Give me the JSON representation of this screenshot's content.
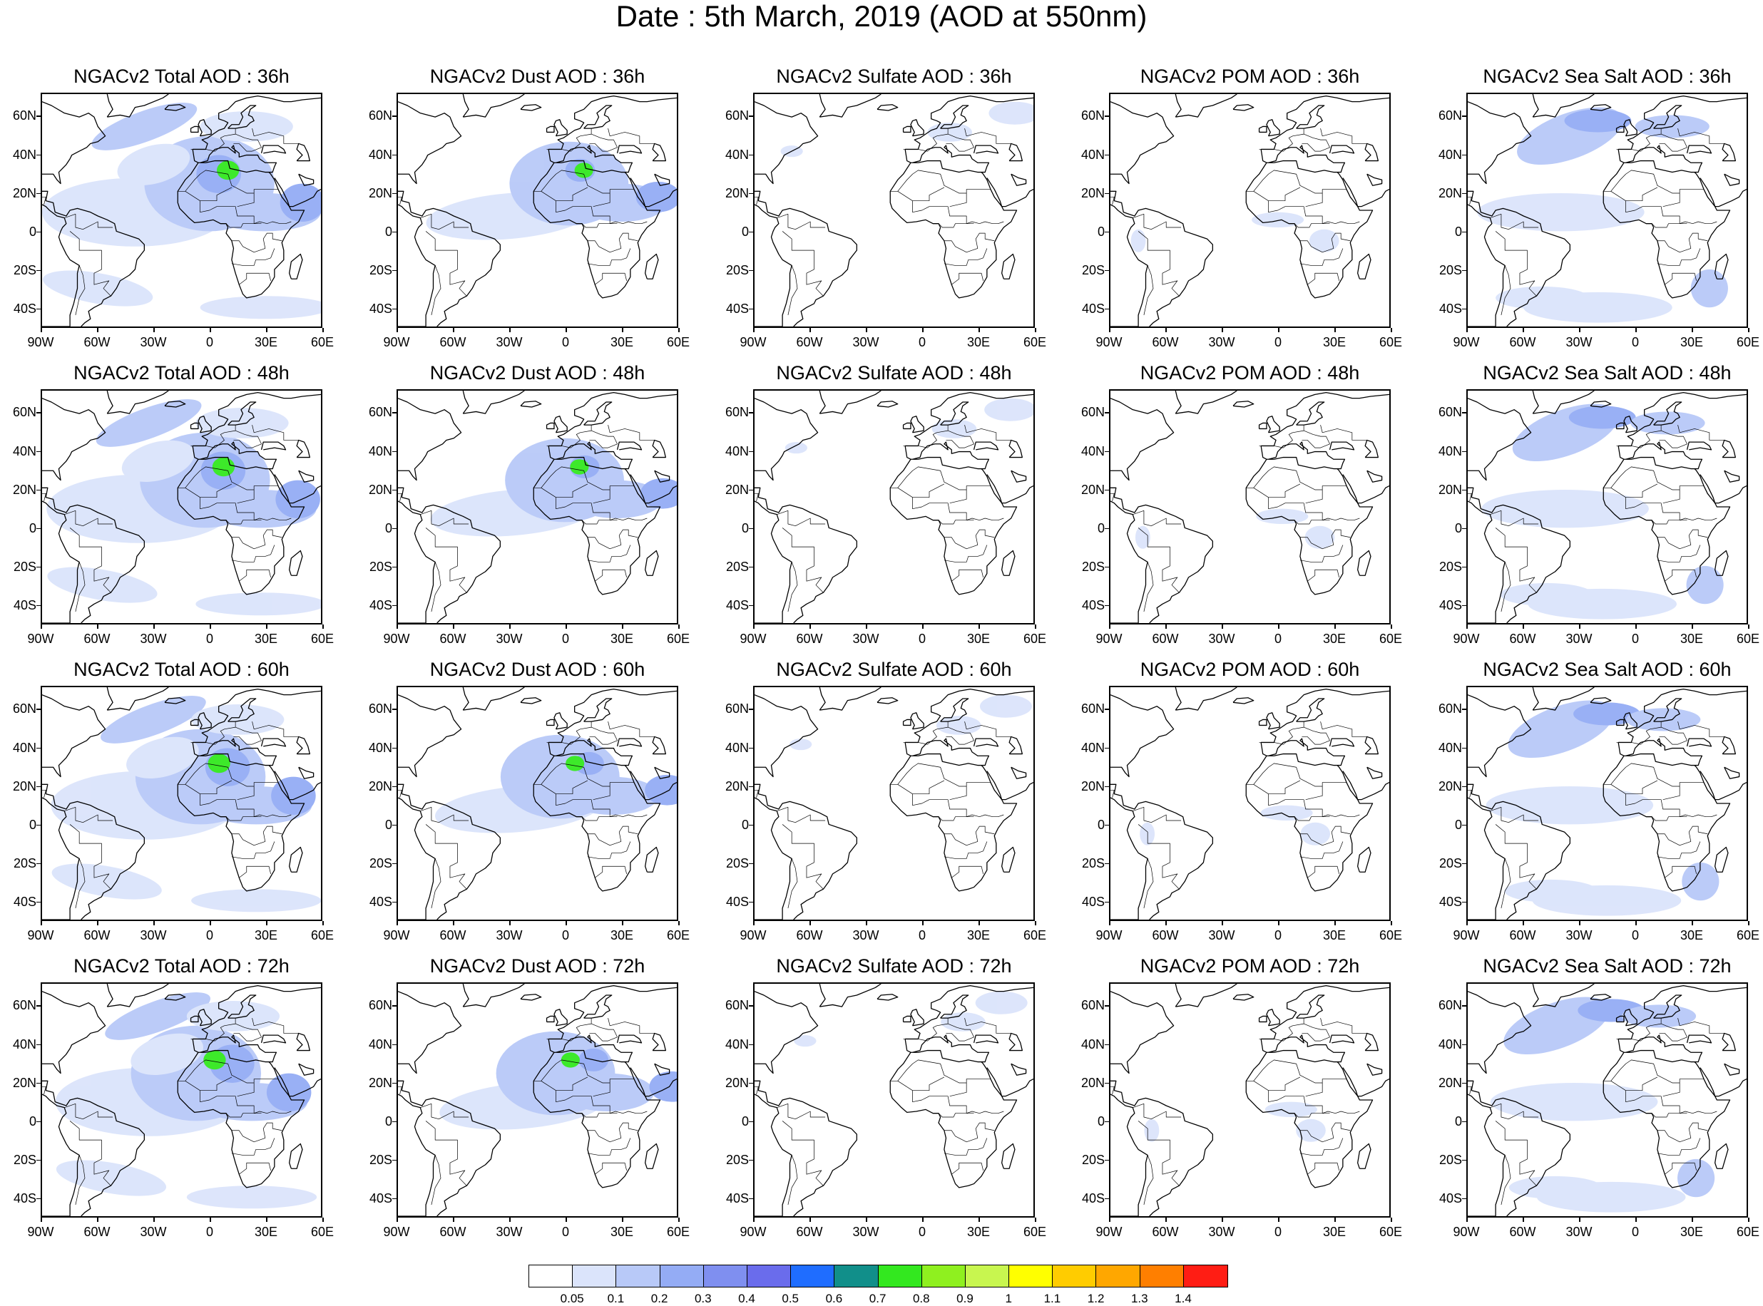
{
  "title": "Date : 5th March, 2019 (AOD at 550nm)",
  "rows": [
    {
      "lead": "36h",
      "titles": [
        "NGACv2 Total AOD : 36h",
        "NGACv2 Dust AOD : 36h",
        "NGACv2 Sulfate AOD : 36h",
        "NGACv2 POM AOD : 36h",
        "NGACv2 Sea Salt AOD : 36h"
      ]
    },
    {
      "lead": "48h",
      "titles": [
        "NGACv2 Total AOD : 48h",
        "NGACv2 Dust AOD : 48h",
        "NGACv2 Sulfate AOD : 48h",
        "NGACv2 POM AOD : 48h",
        "NGACv2 Sea Salt AOD : 48h"
      ]
    },
    {
      "lead": "60h",
      "titles": [
        "NGACv2 Total AOD : 60h",
        "NGACv2 Dust AOD : 60h",
        "NGACv2 Sulfate AOD : 60h",
        "NGACv2 POM AOD : 60h",
        "NGACv2 Sea Salt AOD : 60h"
      ]
    },
    {
      "lead": "72h",
      "titles": [
        "NGACv2 Total AOD : 72h",
        "NGACv2 Dust AOD : 72h",
        "NGACv2 Sulfate AOD : 72h",
        "NGACv2 POM AOD : 72h",
        "NGACv2 Sea Salt  AOD : 72h"
      ]
    }
  ],
  "species": [
    "Total",
    "Dust",
    "Sulfate",
    "POM",
    "Sea Salt"
  ],
  "lat_ticks": [
    "60N",
    "40N",
    "20N",
    "0",
    "20S",
    "40S"
  ],
  "lon_ticks": [
    "90W",
    "60W",
    "30W",
    "0",
    "30E",
    "60E"
  ],
  "map_extent": {
    "lon": [
      -90,
      60
    ],
    "lat": [
      -50,
      72
    ]
  },
  "colorbar": {
    "labels": [
      "0.05",
      "0.1",
      "0.2",
      "0.3",
      "0.4",
      "0.5",
      "0.6",
      "0.7",
      "0.8",
      "0.9",
      "1",
      "1.1",
      "1.2",
      "1.3",
      "1.4"
    ],
    "colors": [
      "#ffffff",
      "#dbe4fb",
      "#b8c9f8",
      "#94acf5",
      "#7f8ff0",
      "#6a6cec",
      "#1f6dff",
      "#118f8a",
      "#33e81f",
      "#8ff01f",
      "#c8f64f",
      "#ffff00",
      "#ffcc00",
      "#ffa700",
      "#ff7f00",
      "#ff1d14"
    ]
  }
}
